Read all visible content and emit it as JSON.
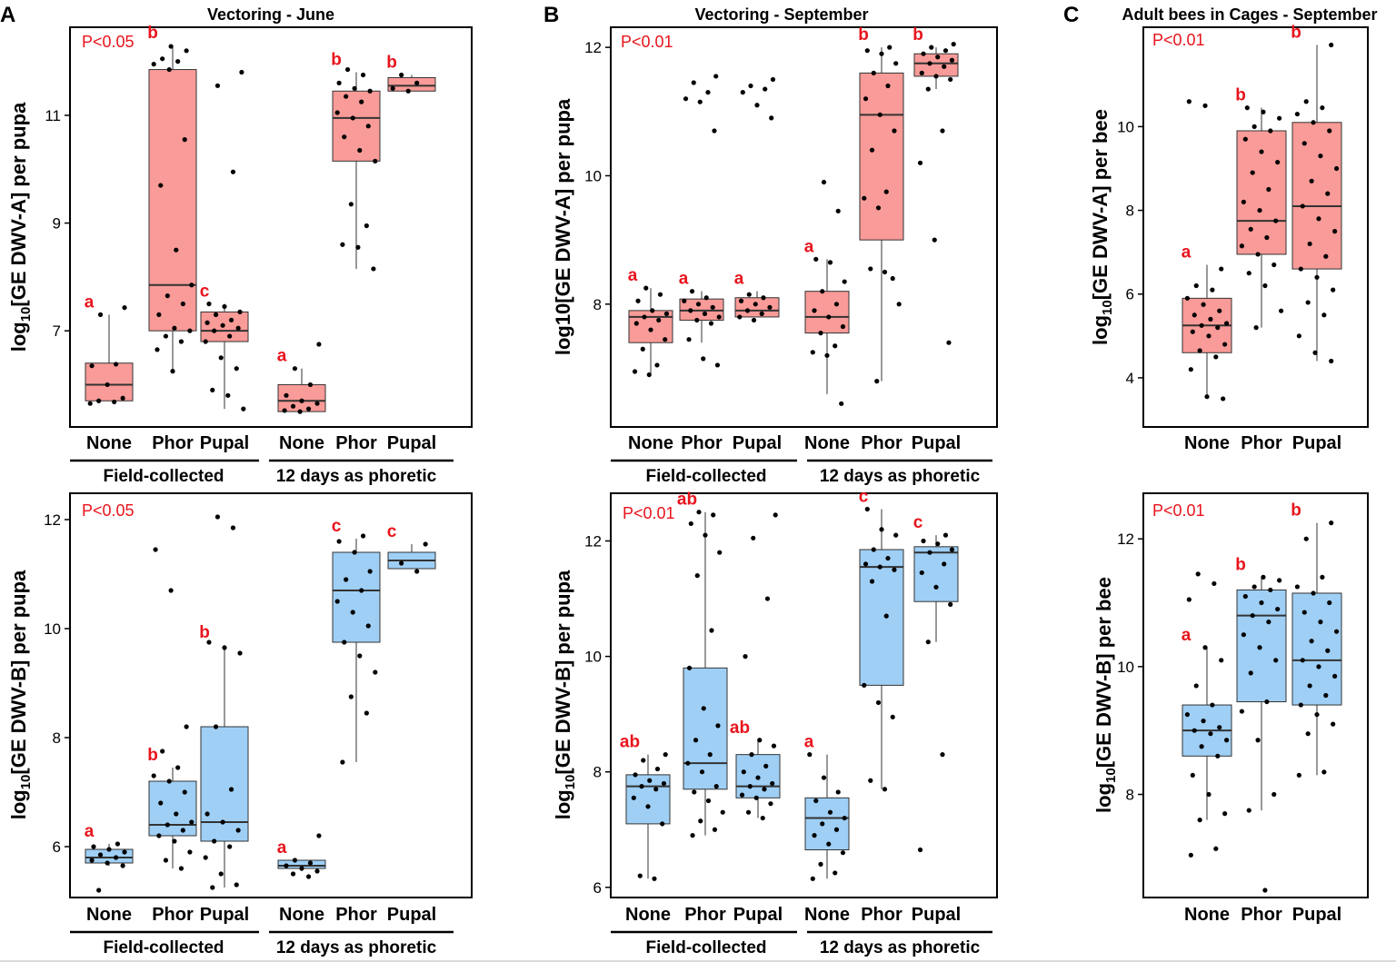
{
  "figure": {
    "panel_letters": [
      "A",
      "B",
      "C"
    ],
    "group_field": "Field-collected",
    "group_phoretic": "12 days as phoretic"
  },
  "colors": {
    "dwva": "#f99b98",
    "dwvb": "#9fcff5",
    "sig": "#e8141c"
  },
  "chart_data": [
    {
      "id": "A-top",
      "type": "box",
      "title": "Vectoring - June",
      "ylabel": "log10[GE DWV-A] per pupa",
      "ylim": [
        5.35,
        12.5
      ],
      "yticks": [
        7,
        9,
        11
      ],
      "pvalue": "P<0.05",
      "color": "dwva",
      "categories": [
        "None",
        "Phor",
        "Pupal",
        "None",
        "Phor",
        "Pupal"
      ],
      "groups": [
        {
          "stats": [
            5.7,
            5.7,
            6.0,
            6.4,
            7.3
          ],
          "letter": "a",
          "points": [
            5.65,
            5.68,
            5.7,
            5.75,
            6.0,
            6.35,
            6.38,
            7.3,
            7.43
          ]
        },
        {
          "stats": [
            6.25,
            7.0,
            7.85,
            11.85,
            12.3
          ],
          "letter": "b",
          "points": [
            6.25,
            6.65,
            6.8,
            6.9,
            7.0,
            7.05,
            7.3,
            7.5,
            7.65,
            7.85,
            8.5,
            9.7,
            10.55,
            11.85,
            11.95,
            12.0,
            12.05,
            12.2,
            12.28
          ]
        },
        {
          "stats": [
            5.55,
            6.8,
            7.0,
            7.35,
            7.5
          ],
          "letter": "c",
          "points": [
            5.55,
            5.8,
            5.9,
            6.3,
            6.5,
            6.8,
            6.9,
            7.0,
            7.05,
            7.1,
            7.15,
            7.2,
            7.3,
            7.35,
            7.45,
            7.5,
            9.95,
            11.55,
            11.8
          ]
        },
        {
          "stats": [
            5.5,
            5.5,
            5.7,
            6.0,
            6.3
          ],
          "letter": "a",
          "points": [
            5.5,
            5.52,
            5.55,
            5.6,
            5.65,
            5.7,
            5.8,
            6.0,
            6.3,
            6.75
          ]
        },
        {
          "stats": [
            8.15,
            10.15,
            10.95,
            11.45,
            11.8
          ],
          "letter": "b",
          "points": [
            8.15,
            8.55,
            8.6,
            8.95,
            9.35,
            10.15,
            10.35,
            10.6,
            10.8,
            10.95,
            11.05,
            11.25,
            11.35,
            11.45,
            11.5,
            11.6,
            11.75,
            11.85
          ]
        },
        {
          "stats": [
            11.45,
            11.45,
            11.55,
            11.7,
            11.75
          ],
          "letter": "b",
          "points": [
            11.45,
            11.5,
            11.6,
            11.75
          ]
        }
      ]
    },
    {
      "id": "A-bottom",
      "type": "box",
      "title": "",
      "ylabel": "log10[GE DWV-B] per pupa",
      "ylim": [
        5.2,
        12.35
      ],
      "yticks": [
        6,
        8,
        10,
        12
      ],
      "pvalue": "P<0.05",
      "color": "dwvb",
      "categories": [
        "None",
        "Phor",
        "Pupal",
        "None",
        "Phor",
        "Pupal"
      ],
      "groups": [
        {
          "stats": [
            5.65,
            5.7,
            5.8,
            5.95,
            6.05
          ],
          "letter": "a",
          "points": [
            5.2,
            5.65,
            5.7,
            5.75,
            5.8,
            5.85,
            5.9,
            5.95,
            6.0,
            6.05
          ]
        },
        {
          "stats": [
            5.6,
            6.2,
            6.4,
            7.2,
            7.45
          ],
          "letter": "b",
          "points": [
            5.6,
            5.75,
            5.9,
            6.1,
            6.2,
            6.3,
            6.4,
            6.45,
            6.6,
            6.8,
            7.0,
            7.2,
            7.3,
            7.45,
            7.75,
            8.2,
            10.7,
            11.45
          ]
        },
        {
          "stats": [
            5.25,
            6.1,
            6.45,
            8.2,
            9.7
          ],
          "letter": "b",
          "points": [
            5.25,
            5.3,
            5.5,
            5.8,
            6.0,
            6.1,
            6.3,
            6.45,
            6.6,
            7.05,
            8.2,
            9.55,
            9.65,
            9.75,
            11.85,
            12.05
          ]
        },
        {
          "stats": [
            5.55,
            5.6,
            5.65,
            5.75,
            5.75
          ],
          "letter": "a",
          "points": [
            5.45,
            5.5,
            5.55,
            5.6,
            5.65,
            5.7,
            5.75,
            6.2
          ]
        },
        {
          "stats": [
            7.55,
            9.75,
            10.7,
            11.4,
            11.65
          ],
          "letter": "c",
          "points": [
            7.55,
            8.45,
            8.75,
            9.2,
            9.5,
            9.75,
            10.05,
            10.3,
            10.5,
            10.7,
            10.9,
            11.05,
            11.4,
            11.6,
            11.7
          ]
        },
        {
          "stats": [
            11.1,
            11.1,
            11.25,
            11.4,
            11.55
          ],
          "letter": "c",
          "points": [
            11.05,
            11.2,
            11.55
          ]
        }
      ]
    },
    {
      "id": "B-top",
      "type": "box",
      "title": "Vectoring  - September",
      "ylabel": "log10[GE DWV-A] per pupa",
      "ylim": [
        6.2,
        12.2
      ],
      "yticks": [
        8,
        10,
        12
      ],
      "pvalue": "P<0.01",
      "color": "dwva",
      "categories": [
        "None",
        "Phor",
        "Pupal",
        "None",
        "Phor",
        "Pupal"
      ],
      "groups": [
        {
          "stats": [
            6.9,
            7.4,
            7.8,
            7.9,
            8.25
          ],
          "letter": "a",
          "points": [
            6.9,
            6.95,
            7.05,
            7.3,
            7.45,
            7.6,
            7.7,
            7.75,
            7.8,
            7.85,
            7.9,
            8.05,
            8.15,
            8.25
          ]
        },
        {
          "stats": [
            7.4,
            7.75,
            7.9,
            8.08,
            8.2
          ],
          "letter": "a",
          "points": [
            7.05,
            7.15,
            7.45,
            7.7,
            7.75,
            7.8,
            7.85,
            7.9,
            7.95,
            8.0,
            8.05,
            8.1,
            8.2,
            10.7,
            11.15,
            11.2,
            11.3,
            11.45,
            11.55
          ]
        },
        {
          "stats": [
            7.8,
            7.8,
            7.9,
            8.1,
            8.2
          ],
          "letter": "a",
          "points": [
            7.75,
            7.8,
            7.85,
            7.9,
            7.95,
            8.0,
            8.05,
            8.1,
            8.15,
            10.9,
            11.1,
            11.3,
            11.35,
            11.4,
            11.5
          ]
        },
        {
          "stats": [
            6.6,
            7.55,
            7.8,
            8.2,
            8.7
          ],
          "letter": "a",
          "points": [
            6.45,
            7.2,
            7.25,
            7.35,
            7.55,
            7.65,
            7.8,
            7.9,
            8.0,
            8.2,
            8.35,
            8.65,
            8.7,
            9.45,
            9.9
          ]
        },
        {
          "stats": [
            6.8,
            9.0,
            10.95,
            11.6,
            12.0
          ],
          "letter": "b",
          "points": [
            6.8,
            8.0,
            8.5,
            8.55,
            8.4,
            9.5,
            9.65,
            9.75,
            10.4,
            10.7,
            10.95,
            11.2,
            11.4,
            11.6,
            11.75,
            11.9,
            11.95,
            12.0
          ]
        },
        {
          "stats": [
            11.35,
            11.55,
            11.75,
            11.9,
            12.0
          ],
          "letter": "b",
          "points": [
            7.4,
            9.0,
            10.2,
            10.7,
            11.35,
            11.5,
            11.55,
            11.6,
            11.7,
            11.75,
            11.8,
            11.85,
            11.9,
            11.95,
            12.0,
            12.05
          ]
        }
      ]
    },
    {
      "id": "B-bottom",
      "type": "box",
      "title": "",
      "ylabel": "log10[GE DWV-B] per pupa",
      "ylim": [
        5.95,
        12.7
      ],
      "yticks": [
        6,
        8,
        10,
        12
      ],
      "pvalue": "P<0.01",
      "color": "dwvb",
      "categories": [
        "None",
        "Phor",
        "Pupal",
        "None",
        "Phor",
        "Pupal"
      ],
      "groups": [
        {
          "stats": [
            6.15,
            7.1,
            7.75,
            7.95,
            8.3
          ],
          "letter": "ab",
          "points": [
            6.15,
            6.2,
            7.1,
            7.4,
            7.55,
            7.7,
            7.75,
            7.8,
            7.85,
            7.95,
            8.05,
            8.2,
            8.3
          ]
        },
        {
          "stats": [
            6.9,
            7.7,
            8.15,
            9.8,
            12.5
          ],
          "letter": "ab",
          "points": [
            6.9,
            7.0,
            7.15,
            7.3,
            7.5,
            7.65,
            7.75,
            8.0,
            8.15,
            8.3,
            8.55,
            8.8,
            9.1,
            9.8,
            10.45,
            11.4,
            11.8,
            12.1,
            12.3,
            12.45,
            12.5
          ]
        },
        {
          "stats": [
            7.2,
            7.55,
            7.75,
            8.3,
            8.55
          ],
          "letter": "ab",
          "points": [
            7.2,
            7.3,
            7.45,
            7.55,
            7.6,
            7.7,
            7.75,
            7.8,
            7.9,
            8.0,
            8.1,
            8.3,
            8.45,
            8.55,
            10.0,
            11.0,
            12.05,
            12.45
          ]
        },
        {
          "stats": [
            6.15,
            6.65,
            7.2,
            7.55,
            8.3
          ],
          "letter": "a",
          "points": [
            6.15,
            6.25,
            6.4,
            6.6,
            6.75,
            6.9,
            7.0,
            7.1,
            7.2,
            7.3,
            7.5,
            7.65,
            7.9,
            8.3
          ]
        },
        {
          "stats": [
            7.7,
            9.5,
            11.55,
            11.85,
            12.55
          ],
          "letter": "c",
          "points": [
            7.7,
            7.85,
            8.95,
            9.2,
            9.5,
            10.7,
            11.3,
            11.5,
            11.55,
            11.6,
            11.7,
            11.85,
            12.1,
            12.2,
            12.55
          ]
        },
        {
          "stats": [
            10.25,
            10.95,
            11.8,
            11.9,
            12.1
          ],
          "letter": "c",
          "points": [
            6.65,
            8.3,
            10.25,
            10.9,
            11.2,
            11.45,
            11.6,
            11.8,
            11.85,
            11.95,
            12.0,
            12.1
          ]
        }
      ]
    },
    {
      "id": "C-top",
      "type": "box",
      "title": "Adult bees in Cages - September",
      "ylabel": "log10[GE DWV-A] per bee",
      "ylim": [
        3.0,
        12.2
      ],
      "yticks": [
        4,
        6,
        8,
        10
      ],
      "pvalue": "P<0.01",
      "color": "dwva",
      "categories": [
        "None",
        "Phor",
        "Pupal"
      ],
      "groups": [
        {
          "stats": [
            3.5,
            4.6,
            5.25,
            5.9,
            6.7
          ],
          "letter": "a",
          "points": [
            3.5,
            3.55,
            4.2,
            4.5,
            4.65,
            4.8,
            5.0,
            5.1,
            5.2,
            5.25,
            5.3,
            5.4,
            5.5,
            5.6,
            5.75,
            5.9,
            6.1,
            6.2,
            6.6,
            10.5,
            10.6
          ]
        },
        {
          "stats": [
            5.2,
            6.95,
            7.75,
            9.9,
            10.45
          ],
          "letter": "b",
          "points": [
            5.2,
            5.6,
            6.2,
            6.5,
            6.7,
            6.95,
            7.15,
            7.35,
            7.55,
            7.75,
            8.0,
            8.2,
            8.5,
            8.9,
            9.15,
            9.4,
            9.7,
            9.9,
            10.0,
            10.2,
            10.35,
            10.45
          ]
        },
        {
          "stats": [
            4.4,
            6.6,
            8.1,
            10.1,
            11.95
          ],
          "letter": "b",
          "points": [
            4.4,
            4.6,
            5.0,
            5.5,
            5.8,
            6.1,
            6.4,
            6.6,
            6.9,
            7.2,
            7.5,
            7.8,
            8.1,
            8.4,
            8.7,
            9.0,
            9.3,
            9.6,
            9.9,
            10.1,
            10.3,
            10.45,
            10.6,
            11.95
          ]
        }
      ]
    },
    {
      "id": "C-bottom",
      "type": "box",
      "title": "",
      "ylabel": "log10[GE DWV-B] per bee",
      "ylim": [
        6.5,
        12.6
      ],
      "yticks": [
        8,
        10,
        12
      ],
      "pvalue": "P<0.01",
      "color": "dwvb",
      "categories": [
        "None",
        "Phor",
        "Pupal"
      ],
      "groups": [
        {
          "stats": [
            7.6,
            8.6,
            9.0,
            9.4,
            10.3
          ],
          "letter": "a",
          "points": [
            7.05,
            7.15,
            7.6,
            7.7,
            8.0,
            8.3,
            8.6,
            8.75,
            8.85,
            8.95,
            9.0,
            9.05,
            9.15,
            9.25,
            9.4,
            9.7,
            10.1,
            10.3,
            11.05,
            11.3,
            11.45
          ]
        },
        {
          "stats": [
            7.75,
            9.45,
            10.8,
            11.2,
            11.4
          ],
          "letter": "b",
          "points": [
            6.5,
            7.75,
            8.0,
            8.85,
            9.3,
            9.45,
            9.9,
            10.1,
            10.3,
            10.5,
            10.7,
            10.8,
            10.9,
            11.0,
            11.1,
            11.2,
            11.25,
            11.35,
            11.4
          ]
        },
        {
          "stats": [
            8.3,
            9.4,
            10.1,
            11.15,
            12.25
          ],
          "letter": "b",
          "points": [
            8.3,
            8.35,
            8.95,
            9.1,
            9.25,
            9.4,
            9.55,
            9.7,
            9.85,
            10.0,
            10.1,
            10.25,
            10.4,
            10.55,
            10.7,
            10.85,
            11.0,
            11.15,
            11.25,
            11.4,
            12.0,
            12.25
          ]
        }
      ]
    }
  ]
}
